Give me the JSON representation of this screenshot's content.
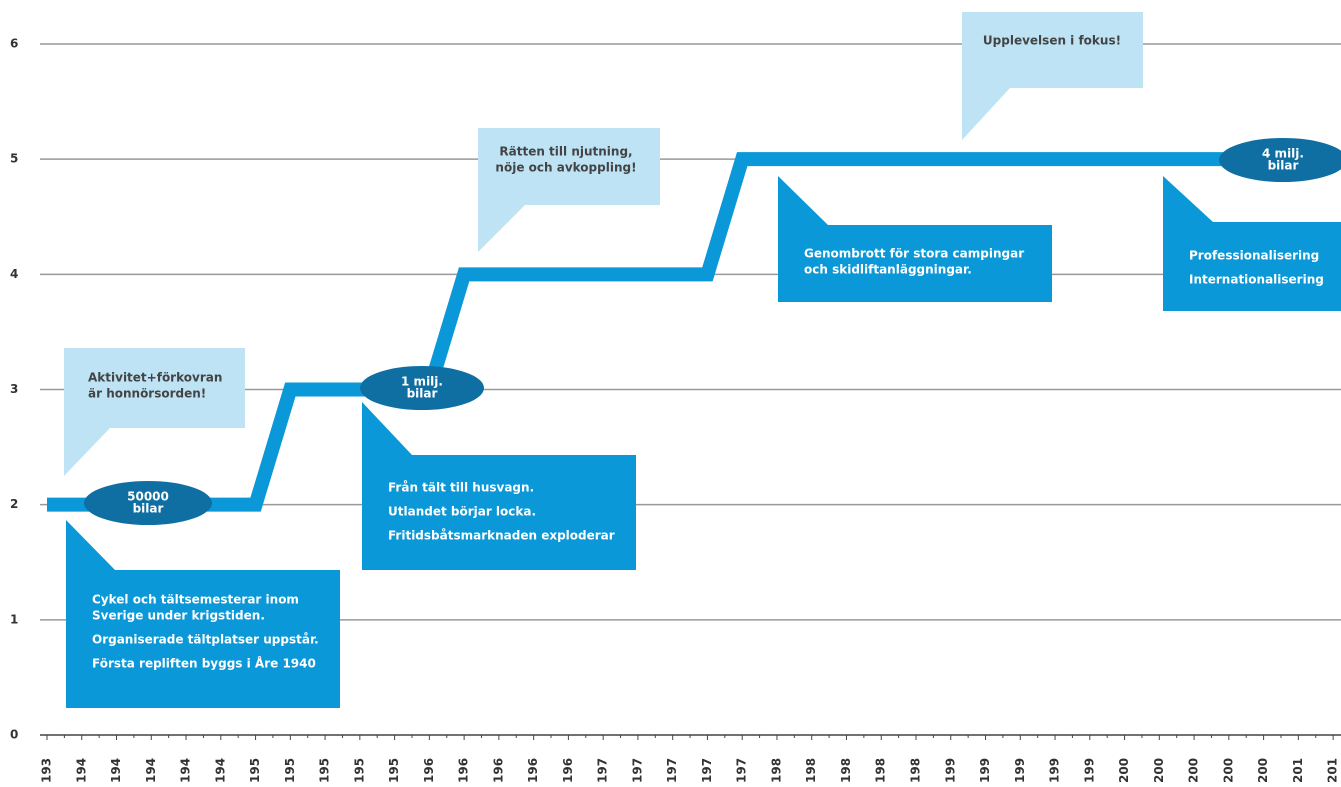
{
  "chart_data": {
    "type": "line",
    "categories": [
      "193",
      "194",
      "194",
      "194",
      "194",
      "194",
      "195",
      "195",
      "195",
      "195",
      "195",
      "196",
      "196",
      "196",
      "196",
      "196",
      "197",
      "197",
      "197",
      "197",
      "197",
      "198",
      "198",
      "198",
      "198",
      "198",
      "199",
      "199",
      "199",
      "199",
      "199",
      "200",
      "200",
      "200",
      "200",
      "200",
      "201",
      "201"
    ],
    "series": [
      {
        "color": "#0a98d8",
        "values": [
          2,
          2,
          2,
          2,
          2,
          2,
          2,
          3,
          3,
          3,
          3,
          3,
          4,
          4,
          4,
          4,
          4,
          4,
          4,
          4,
          5,
          5,
          5,
          5,
          5,
          5,
          5,
          5,
          5,
          5,
          5,
          5,
          5,
          5,
          5,
          5,
          5,
          5
        ]
      }
    ],
    "ylim": [
      0,
      6
    ],
    "yticks": [
      0,
      1,
      2,
      3,
      4,
      5,
      6
    ],
    "grid": true,
    "annotation_colors": {
      "note": "#bde3f5",
      "box": "#0a98d8",
      "badge": "#0f6fa3"
    },
    "annotations": [
      {
        "kind": "note",
        "lines": [
          "Aktivitet+förkovran",
          "är honnörsorden!"
        ]
      },
      {
        "kind": "badge",
        "lines": [
          "50000",
          "bilar"
        ]
      },
      {
        "kind": "box",
        "lines": [
          "Cykel och tältsemesterar inom",
          "Sverige under krigstiden.",
          "Organiserade tältplatser uppstår.",
          "Första repliften byggs i Åre 1940"
        ]
      },
      {
        "kind": "badge",
        "lines": [
          "1 milj.",
          "bilar"
        ]
      },
      {
        "kind": "box",
        "lines": [
          "Från tält till husvagn.",
          "Utlandet börjar locka.",
          "Fritidsbåtsmarknaden exploderar"
        ]
      },
      {
        "kind": "note",
        "lines": [
          "Rätten till njutning,",
          "nöje och avkoppling!"
        ]
      },
      {
        "kind": "box",
        "lines": [
          "Genombrott för stora campingar",
          "och skidliftanläggningar."
        ]
      },
      {
        "kind": "note",
        "lines": [
          "Upplevelsen i fokus!"
        ]
      },
      {
        "kind": "badge",
        "lines": [
          "4 milj.",
          "bilar"
        ]
      },
      {
        "kind": "box",
        "lines": [
          "Professionalisering",
          "Internationalisering"
        ]
      }
    ]
  }
}
